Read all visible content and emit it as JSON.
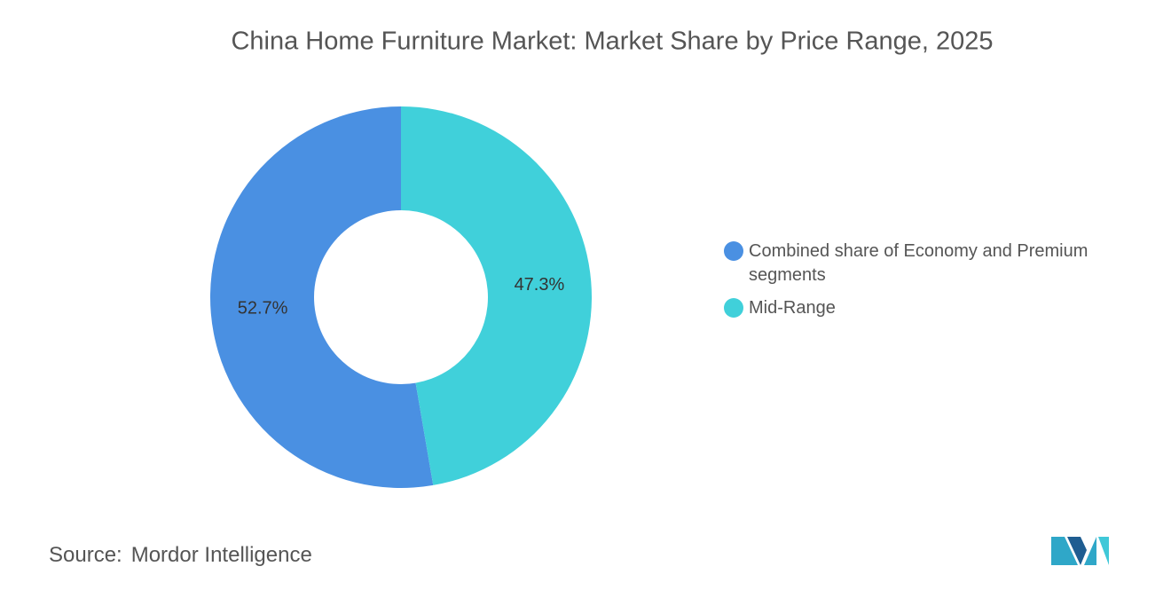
{
  "chart_data": {
    "type": "pie",
    "title": "China Home Furniture Market: Market Share by Price Range, 2025",
    "series": [
      {
        "name": "Combined share of Economy and Premium segments",
        "color": "#4a90e2",
        "values": [
          52.7
        ],
        "value_labels": [
          "52.7%"
        ]
      },
      {
        "name": "Mid-Range",
        "color": "#40d0da",
        "values": [
          47.3
        ],
        "value_labels": [
          "47.3%"
        ]
      }
    ],
    "donut": true
  },
  "footer": {
    "source_label": "Source:",
    "source": "Mordor Intelligence"
  }
}
